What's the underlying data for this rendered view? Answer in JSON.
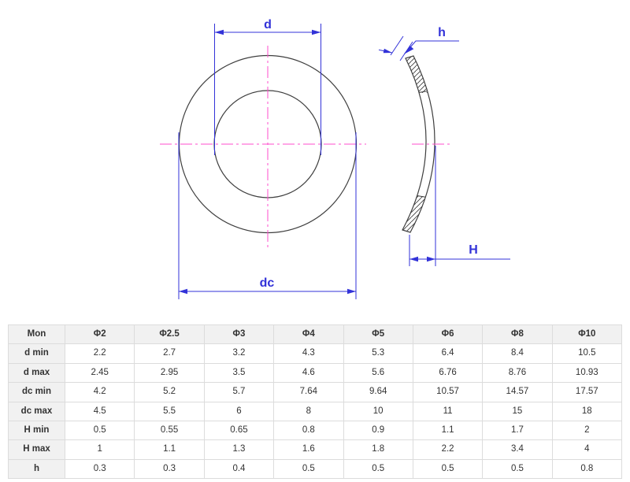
{
  "colors": {
    "dimension": "#3232d8",
    "centerline": "#ff4ccc",
    "outline": "#3f3f3f",
    "table_header_bg": "#f1f1f1",
    "table_border": "#dcdcdc",
    "table_text": "#333333"
  },
  "diagram": {
    "front_view": {
      "inner_diameter_label": "d",
      "outer_diameter_label": "dc"
    },
    "side_view": {
      "thickness_label": "h",
      "height_label": "H"
    }
  },
  "table": {
    "columns": [
      "Mon",
      "Φ2",
      "Φ2.5",
      "Φ3",
      "Φ4",
      "Φ5",
      "Φ6",
      "Φ8",
      "Φ10"
    ],
    "rows": [
      {
        "label": "d min",
        "values": [
          "2.2",
          "2.7",
          "3.2",
          "4.3",
          "5.3",
          "6.4",
          "8.4",
          "10.5"
        ]
      },
      {
        "label": "d max",
        "values": [
          "2.45",
          "2.95",
          "3.5",
          "4.6",
          "5.6",
          "6.76",
          "8.76",
          "10.93"
        ]
      },
      {
        "label": "dc min",
        "values": [
          "4.2",
          "5.2",
          "5.7",
          "7.64",
          "9.64",
          "10.57",
          "14.57",
          "17.57"
        ]
      },
      {
        "label": "dc max",
        "values": [
          "4.5",
          "5.5",
          "6",
          "8",
          "10",
          "11",
          "15",
          "18"
        ]
      },
      {
        "label": "H min",
        "values": [
          "0.5",
          "0.55",
          "0.65",
          "0.8",
          "0.9",
          "1.1",
          "1.7",
          "2"
        ]
      },
      {
        "label": "H max",
        "values": [
          "1",
          "1.1",
          "1.3",
          "1.6",
          "1.8",
          "2.2",
          "3.4",
          "4"
        ]
      },
      {
        "label": "h",
        "values": [
          "0.3",
          "0.3",
          "0.4",
          "0.5",
          "0.5",
          "0.5",
          "0.5",
          "0.8"
        ]
      }
    ]
  }
}
